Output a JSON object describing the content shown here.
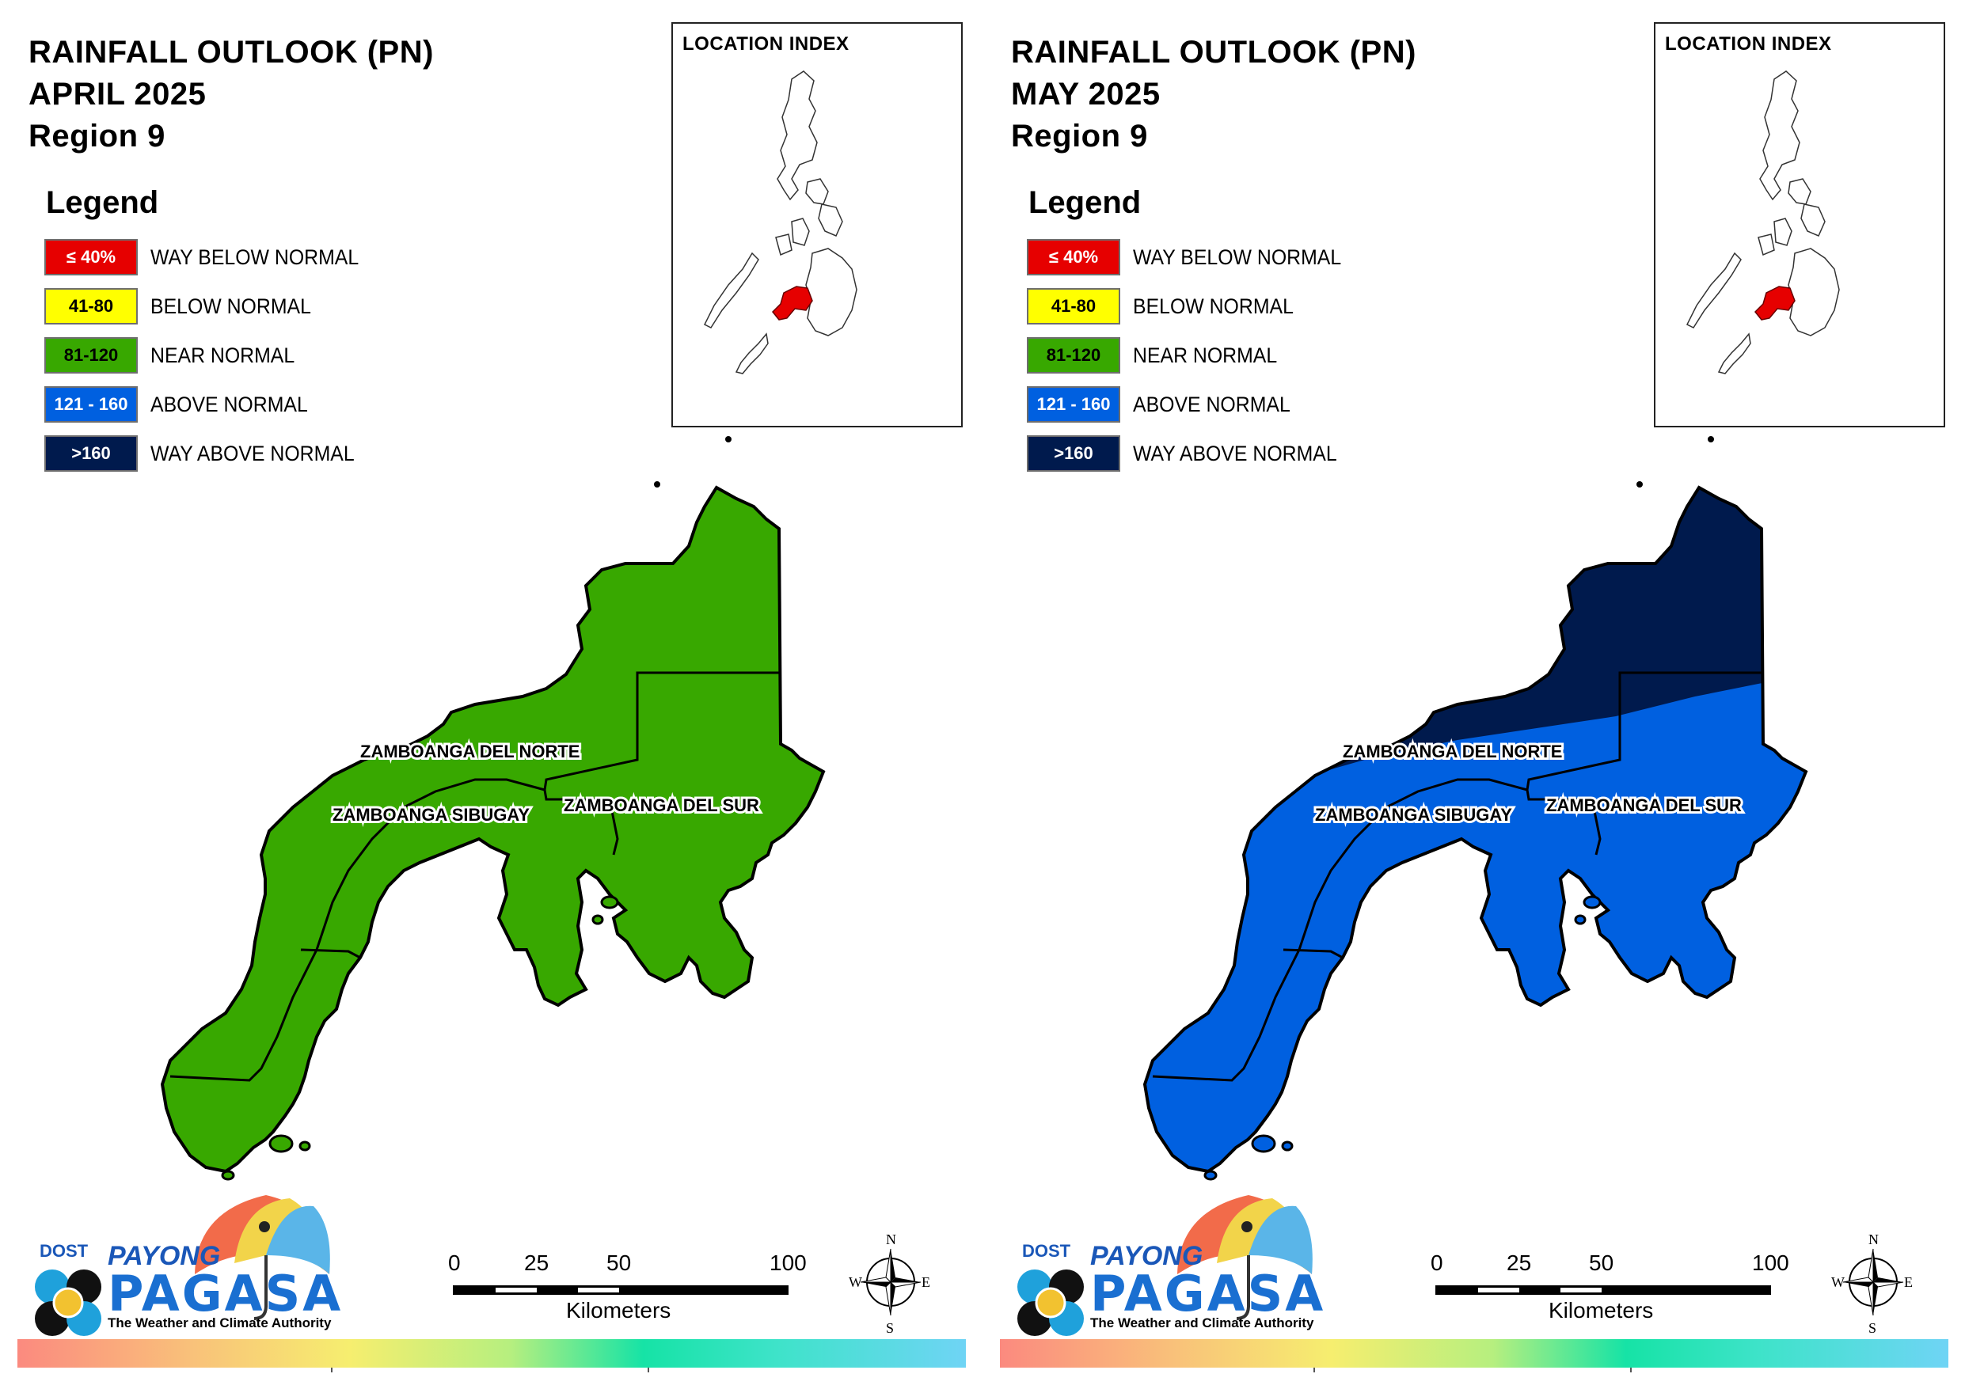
{
  "colors": {
    "way_below": "#e60000",
    "below": "#ffff00",
    "near": "#38a800",
    "above": "#0060e0",
    "way_above": "#001a4d",
    "index_highlight": "#e60000"
  },
  "legend": {
    "title": "Legend",
    "items": [
      {
        "swatch_text": "≤ 40%",
        "label": "WAY BELOW NORMAL",
        "color": "#e60000",
        "text_color": "#ffffff"
      },
      {
        "swatch_text": "41-80",
        "label": "BELOW NORMAL",
        "color": "#ffff00",
        "text_color": "#000000"
      },
      {
        "swatch_text": "81-120",
        "label": "NEAR NORMAL",
        "color": "#38a800",
        "text_color": "#000000"
      },
      {
        "swatch_text": "121 - 160",
        "label": "ABOVE NORMAL",
        "color": "#0060e0",
        "text_color": "#ffffff"
      },
      {
        "swatch_text": ">160",
        "label": "WAY ABOVE NORMAL",
        "color": "#001a4d",
        "text_color": "#ffffff"
      }
    ]
  },
  "index_title": "LOCATION INDEX",
  "provinces": {
    "norte": "ZAMBOANGA DEL NORTE",
    "sibugay": "ZAMBOANGA SIBUGAY",
    "sur": "ZAMBOANGA DEL SUR"
  },
  "scale": {
    "ticks": [
      "0",
      "25",
      "50",
      "100"
    ],
    "unit": "Kilometers"
  },
  "compass": {
    "n": "N",
    "e": "E",
    "s": "S",
    "w": "W"
  },
  "logo": {
    "dost": "DOST",
    "payong": "PAYONG",
    "pagasa": "PAGASA",
    "tagline": "The Weather and Climate Authority"
  },
  "maps": [
    {
      "title_line1": "RAINFALL OUTLOOK (PN)",
      "title_line2": "APRIL 2025",
      "title_line3": "Region 9",
      "category": "NEAR NORMAL",
      "fill": "#38a800"
    },
    {
      "title_line1": "RAINFALL OUTLOOK (PN)",
      "title_line2": "MAY 2025",
      "title_line3": "Region 9",
      "category": "ABOVE NORMAL",
      "fill": "#0060e0",
      "secondary_category": "WAY ABOVE NORMAL",
      "secondary_fill": "#001a4d"
    }
  ]
}
